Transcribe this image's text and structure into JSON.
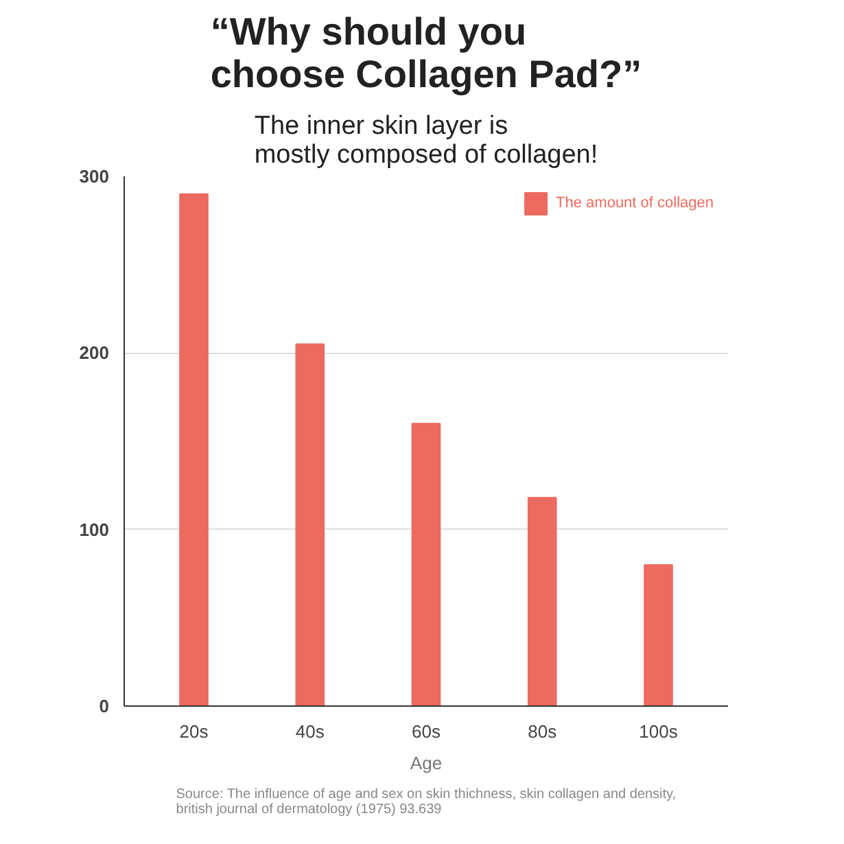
{
  "chart_data": {
    "type": "bar",
    "title": "“Why should you\nchoose Collagen Pad?”",
    "subtitle": "The inner skin layer is\nmostly composed of collagen!",
    "xlabel": "Age",
    "categories": [
      "20s",
      "40s",
      "60s",
      "80s",
      "100s"
    ],
    "series": [
      {
        "name": "The amount of collagen",
        "color": "#ec6a60",
        "values": [
          290,
          205,
          160,
          118,
          80
        ]
      }
    ],
    "ylim": [
      0,
      300
    ],
    "yticks": [
      0,
      100,
      200,
      300
    ],
    "grid": "y",
    "legend": "top right",
    "annotations": [
      "Source: The influence of age and sex on skin thichness, skin collagen and density,\nbritish journal of dermatology (1975) 93.639"
    ]
  }
}
